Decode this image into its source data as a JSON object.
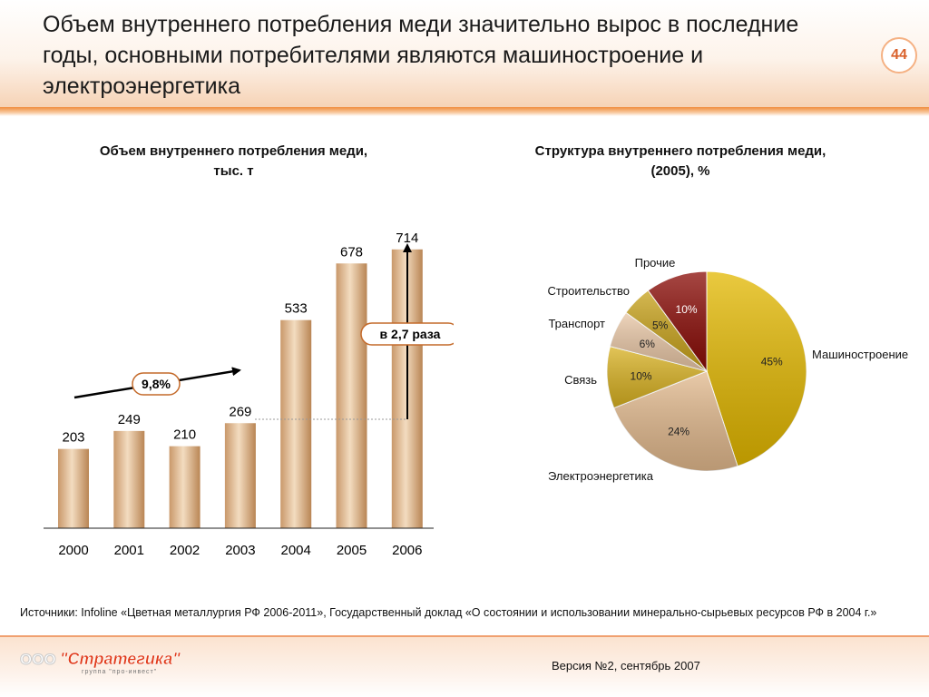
{
  "slide": {
    "title": "Объем внутреннего потребления меди значительно вырос в последние годы, основными потребителями являются машиностроение и электроэнергетика",
    "page_number": "44",
    "sources": "Источники: Infoline «Цветная металлургия РФ 2006-2011», Государственный доклад «О состоянии и использовании минерально-сырьевых ресурсов РФ в 2004 г.»",
    "version": "Версия №2, сентябрь 2007",
    "logo": {
      "prefix": "ООО",
      "name": "\"Стратегика\"",
      "tagline": "группа \"про-инвест\""
    },
    "colors": {
      "accent": "#f08c3c",
      "bar": "#d4a97a",
      "page_number": "#d9602a"
    }
  },
  "chart_data": [
    {
      "type": "bar",
      "title": "Объем внутреннего потребления меди, тыс. т",
      "categories": [
        "2000",
        "2001",
        "2002",
        "2003",
        "2004",
        "2005",
        "2006"
      ],
      "values": [
        203,
        249,
        210,
        269,
        533,
        678,
        714
      ],
      "ylim": [
        0,
        760
      ],
      "annotations": {
        "cagr": "9,8%",
        "growth": "в 2,7 раза"
      }
    },
    {
      "type": "pie",
      "title": "Структура внутреннего потребления меди, (2005), %",
      "slices": [
        {
          "label": "Машиностроение",
          "value": 45,
          "display": "45%",
          "color": "#e3b800"
        },
        {
          "label": "Электроэнергетика",
          "value": 24,
          "display": "24%",
          "color": "#e2b98d"
        },
        {
          "label": "Связь",
          "value": 10,
          "display": "10%",
          "color": "#d9b222"
        },
        {
          "label": "Транспорт",
          "value": 6,
          "display": "6%",
          "color": "#e9c7a6"
        },
        {
          "label": "Строительство",
          "value": 5,
          "display": "5%",
          "color": "#c8a21a"
        },
        {
          "label": "Прочие",
          "value": 10,
          "display": "10%",
          "color": "#8a0b06"
        }
      ]
    }
  ]
}
